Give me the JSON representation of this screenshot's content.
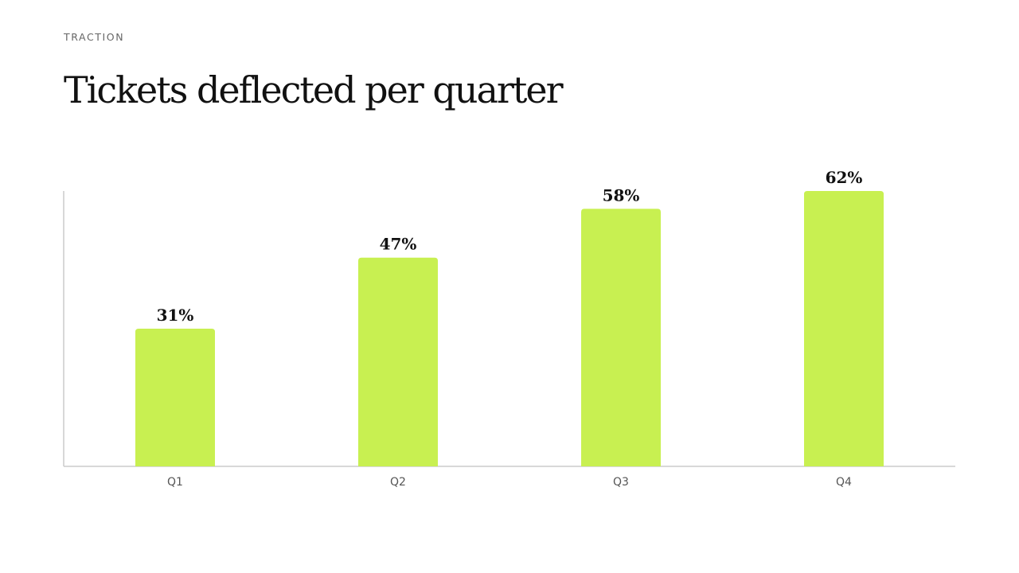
{
  "slide": {
    "eyebrow": "TRACTION",
    "title": "Tickets deflected per quarter"
  },
  "colors": {
    "bar": "#c8f051",
    "axis": "#cccccc",
    "text": "#111111",
    "muted": "#666666"
  },
  "chart_data": {
    "type": "bar",
    "title": "Tickets deflected per quarter",
    "categories": [
      "Q1",
      "Q2",
      "Q3",
      "Q4"
    ],
    "values": [
      31,
      47,
      58,
      62
    ],
    "value_labels": [
      "31%",
      "47%",
      "58%",
      "62%"
    ],
    "ylim": [
      0,
      62
    ],
    "grid": false,
    "legend": "none"
  }
}
